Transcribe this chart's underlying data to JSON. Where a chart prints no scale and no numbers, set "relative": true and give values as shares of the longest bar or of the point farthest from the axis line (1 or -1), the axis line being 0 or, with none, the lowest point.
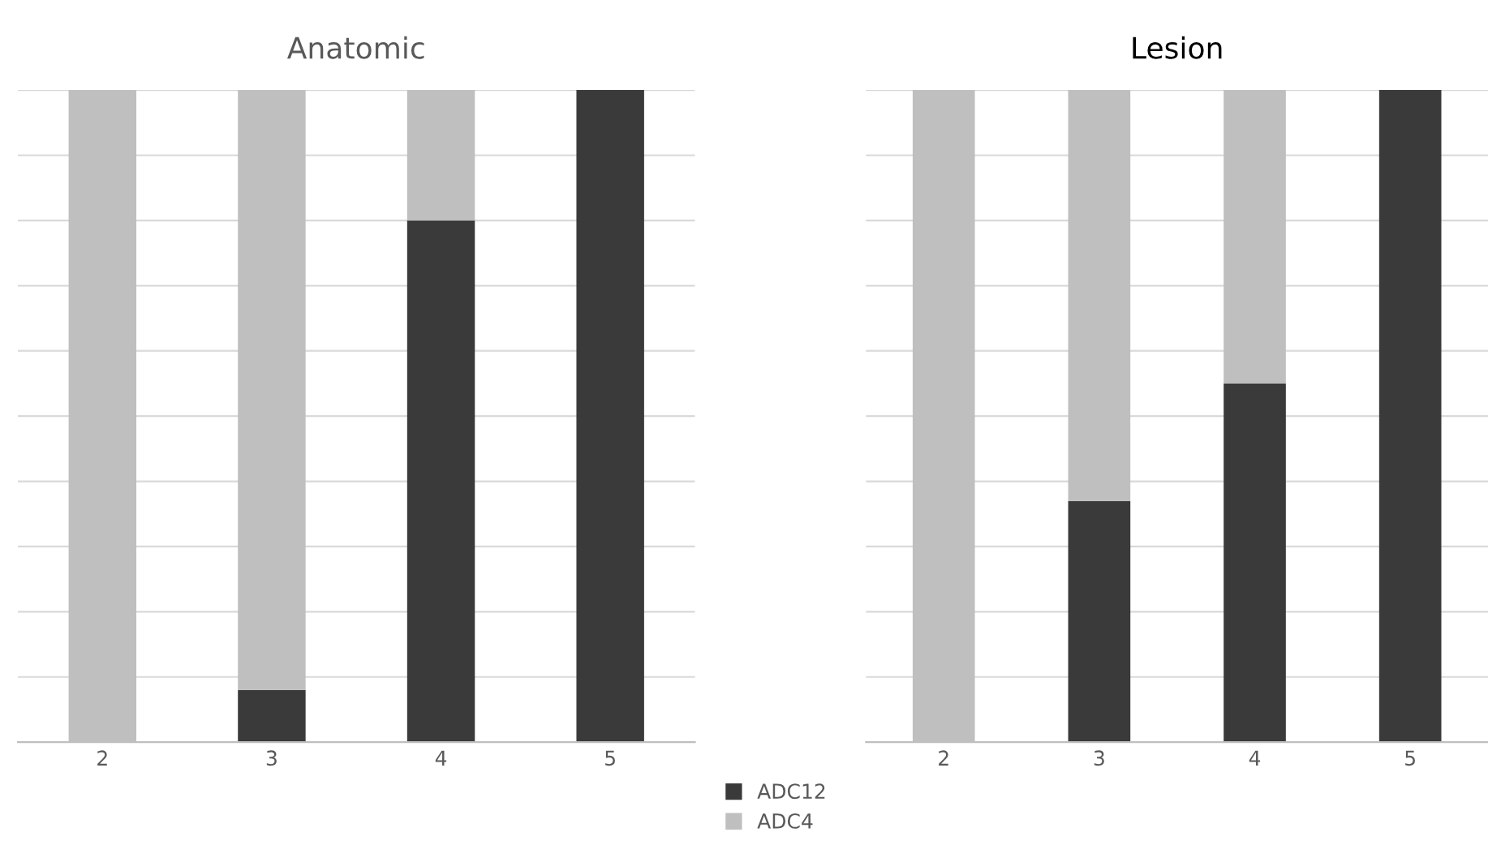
{
  "chart_data": [
    {
      "type": "bar",
      "title": "Anatomic",
      "categories": [
        "2",
        "3",
        "4",
        "5"
      ],
      "stacked": true,
      "relative": true,
      "grid": "y",
      "tick_labels": "x",
      "legend": "bottom right",
      "series": [
        {
          "name": "ADC12",
          "color": "#3a3a3a",
          "values": [
            0,
            0.08,
            0.8,
            1
          ]
        },
        {
          "name": "ADC4",
          "color": "#bfbfbf",
          "values": [
            1,
            0.92,
            0.2,
            0
          ]
        }
      ]
    },
    {
      "type": "bar",
      "title": "Lesion",
      "categories": [
        "2",
        "3",
        "4",
        "5"
      ],
      "stacked": true,
      "relative": true,
      "grid": "y",
      "tick_labels": "x",
      "series": [
        {
          "color": "#3a3a3a",
          "values": [
            0,
            0.37,
            0.55,
            1
          ]
        },
        {
          "color": "#bfbfbf",
          "values": [
            1,
            0.63,
            0.45,
            0
          ]
        }
      ]
    }
  ]
}
